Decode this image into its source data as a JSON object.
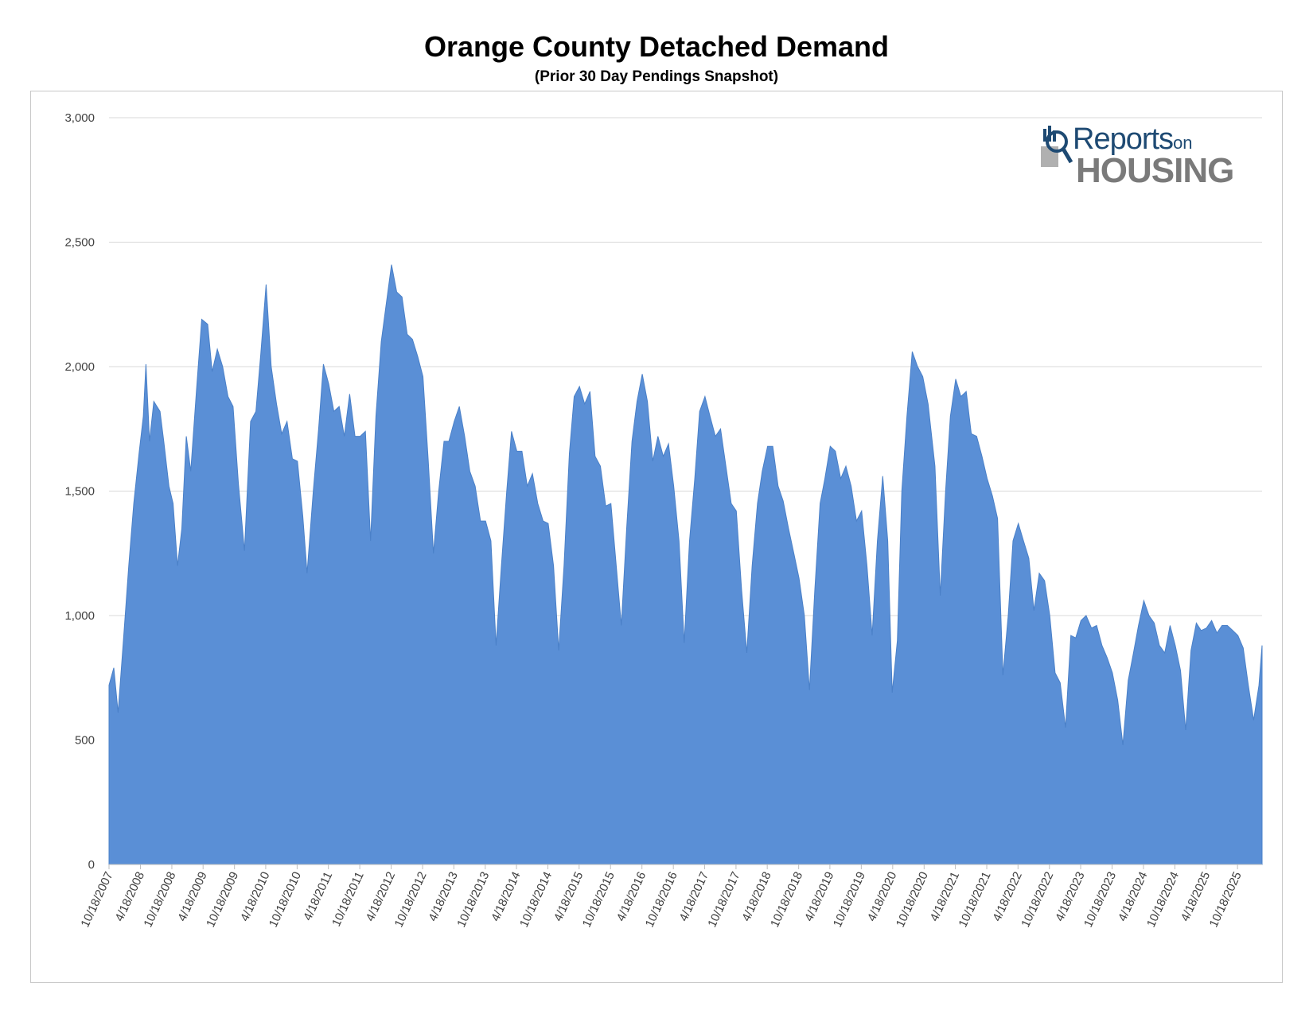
{
  "title": "Orange County Detached Demand",
  "subtitle": "(Prior 30 Day Pendings Snapshot)",
  "logo": {
    "line1": "Reports",
    "line1_suffix": "on",
    "line2": "HOUSING"
  },
  "colors": {
    "fill": "#5a8fd6",
    "grid": "#d9d9d9",
    "text": "#404040"
  },
  "chart_data": {
    "type": "area",
    "title": "Orange County Detached Demand",
    "subtitle": "(Prior 30 Day Pendings Snapshot)",
    "xlabel": "",
    "ylabel": "",
    "ylim": [
      0,
      3000
    ],
    "y_ticks": [
      0,
      500,
      1000,
      1500,
      2000,
      2500,
      3000
    ],
    "y_tick_labels": [
      "0",
      "500",
      "1,000",
      "1,500",
      "2,000",
      "2,500",
      "3,000"
    ],
    "x_tick_labels": [
      "10/18/2007",
      "4/18/2008",
      "10/18/2008",
      "4/18/2009",
      "10/18/2009",
      "4/18/2010",
      "10/18/2010",
      "4/18/2011",
      "10/18/2011",
      "4/18/2012",
      "10/18/2012",
      "4/18/2013",
      "10/18/2013",
      "4/18/2014",
      "10/18/2014",
      "4/18/2015",
      "10/18/2015",
      "4/18/2016",
      "10/18/2016",
      "4/18/2017",
      "10/18/2017",
      "4/18/2018",
      "10/18/2018",
      "4/18/2019",
      "10/18/2019",
      "4/18/2020",
      "10/18/2020",
      "4/18/2021",
      "10/18/2021",
      "4/18/2022",
      "10/18/2022",
      "4/18/2023",
      "10/18/2023",
      "4/18/2024",
      "10/18/2024",
      "4/18/2025",
      "10/18/2025"
    ],
    "grid": true,
    "legend": "none",
    "series": [
      {
        "points": [
          [
            "2007-10-18",
            720
          ],
          [
            "2007-11-15",
            790
          ],
          [
            "2007-12-10",
            610
          ],
          [
            "2008-01-10",
            900
          ],
          [
            "2008-02-10",
            1200
          ],
          [
            "2008-03-10",
            1450
          ],
          [
            "2008-04-10",
            1650
          ],
          [
            "2008-05-05",
            1800
          ],
          [
            "2008-05-20",
            2010
          ],
          [
            "2008-06-10",
            1700
          ],
          [
            "2008-07-05",
            1860
          ],
          [
            "2008-08-10",
            1820
          ],
          [
            "2008-09-01",
            1700
          ],
          [
            "2008-10-01",
            1520
          ],
          [
            "2008-10-25",
            1450
          ],
          [
            "2008-11-20",
            1200
          ],
          [
            "2008-12-15",
            1350
          ],
          [
            "2009-01-10",
            1720
          ],
          [
            "2009-02-05",
            1580
          ],
          [
            "2009-03-10",
            1900
          ],
          [
            "2009-04-10",
            2190
          ],
          [
            "2009-05-15",
            2170
          ],
          [
            "2009-06-10",
            1980
          ],
          [
            "2009-07-10",
            2070
          ],
          [
            "2009-08-10",
            2000
          ],
          [
            "2009-09-10",
            1880
          ],
          [
            "2009-10-10",
            1840
          ],
          [
            "2009-11-10",
            1530
          ],
          [
            "2009-12-15",
            1260
          ],
          [
            "2010-01-20",
            1780
          ],
          [
            "2010-02-20",
            1820
          ],
          [
            "2010-03-20",
            2050
          ],
          [
            "2010-04-20",
            2330
          ],
          [
            "2010-05-20",
            2000
          ],
          [
            "2010-06-20",
            1850
          ],
          [
            "2010-07-20",
            1730
          ],
          [
            "2010-08-20",
            1780
          ],
          [
            "2010-09-20",
            1630
          ],
          [
            "2010-10-20",
            1620
          ],
          [
            "2010-11-20",
            1400
          ],
          [
            "2010-12-15",
            1170
          ],
          [
            "2011-01-20",
            1500
          ],
          [
            "2011-02-20",
            1750
          ],
          [
            "2011-03-20",
            2010
          ],
          [
            "2011-04-20",
            1930
          ],
          [
            "2011-05-20",
            1820
          ],
          [
            "2011-06-20",
            1840
          ],
          [
            "2011-07-20",
            1720
          ],
          [
            "2011-08-20",
            1890
          ],
          [
            "2011-09-20",
            1720
          ],
          [
            "2011-10-20",
            1720
          ],
          [
            "2011-11-20",
            1740
          ],
          [
            "2011-12-20",
            1300
          ],
          [
            "2012-01-20",
            1800
          ],
          [
            "2012-02-20",
            2100
          ],
          [
            "2012-03-20",
            2250
          ],
          [
            "2012-04-20",
            2410
          ],
          [
            "2012-05-20",
            2300
          ],
          [
            "2012-06-20",
            2280
          ],
          [
            "2012-07-20",
            2130
          ],
          [
            "2012-08-20",
            2110
          ],
          [
            "2012-09-20",
            2040
          ],
          [
            "2012-10-20",
            1960
          ],
          [
            "2012-11-20",
            1620
          ],
          [
            "2012-12-20",
            1250
          ],
          [
            "2013-01-20",
            1500
          ],
          [
            "2013-02-20",
            1700
          ],
          [
            "2013-03-20",
            1700
          ],
          [
            "2013-04-20",
            1780
          ],
          [
            "2013-05-20",
            1840
          ],
          [
            "2013-06-20",
            1720
          ],
          [
            "2013-07-20",
            1580
          ],
          [
            "2013-08-20",
            1520
          ],
          [
            "2013-09-20",
            1380
          ],
          [
            "2013-10-20",
            1380
          ],
          [
            "2013-11-20",
            1300
          ],
          [
            "2013-12-20",
            880
          ],
          [
            "2014-01-20",
            1200
          ],
          [
            "2014-02-20",
            1500
          ],
          [
            "2014-03-20",
            1740
          ],
          [
            "2014-04-20",
            1660
          ],
          [
            "2014-05-20",
            1660
          ],
          [
            "2014-06-20",
            1520
          ],
          [
            "2014-07-20",
            1570
          ],
          [
            "2014-08-20",
            1450
          ],
          [
            "2014-09-20",
            1380
          ],
          [
            "2014-10-20",
            1370
          ],
          [
            "2014-11-20",
            1200
          ],
          [
            "2014-12-20",
            860
          ],
          [
            "2015-01-20",
            1200
          ],
          [
            "2015-02-20",
            1650
          ],
          [
            "2015-03-20",
            1880
          ],
          [
            "2015-04-20",
            1920
          ],
          [
            "2015-05-20",
            1850
          ],
          [
            "2015-06-20",
            1900
          ],
          [
            "2015-07-20",
            1640
          ],
          [
            "2015-08-20",
            1600
          ],
          [
            "2015-09-20",
            1440
          ],
          [
            "2015-10-20",
            1450
          ],
          [
            "2015-11-20",
            1200
          ],
          [
            "2015-12-20",
            960
          ],
          [
            "2016-01-20",
            1350
          ],
          [
            "2016-02-20",
            1700
          ],
          [
            "2016-03-20",
            1860
          ],
          [
            "2016-04-20",
            1970
          ],
          [
            "2016-05-20",
            1860
          ],
          [
            "2016-06-20",
            1620
          ],
          [
            "2016-07-20",
            1720
          ],
          [
            "2016-08-20",
            1640
          ],
          [
            "2016-09-20",
            1690
          ],
          [
            "2016-10-20",
            1520
          ],
          [
            "2016-11-20",
            1300
          ],
          [
            "2016-12-20",
            890
          ],
          [
            "2017-01-20",
            1300
          ],
          [
            "2017-02-20",
            1550
          ],
          [
            "2017-03-20",
            1820
          ],
          [
            "2017-04-20",
            1880
          ],
          [
            "2017-05-20",
            1800
          ],
          [
            "2017-06-20",
            1720
          ],
          [
            "2017-07-20",
            1750
          ],
          [
            "2017-08-20",
            1600
          ],
          [
            "2017-09-20",
            1450
          ],
          [
            "2017-10-20",
            1420
          ],
          [
            "2017-11-20",
            1100
          ],
          [
            "2017-12-20",
            850
          ],
          [
            "2018-01-20",
            1200
          ],
          [
            "2018-02-20",
            1450
          ],
          [
            "2018-03-20",
            1580
          ],
          [
            "2018-04-20",
            1680
          ],
          [
            "2018-05-20",
            1680
          ],
          [
            "2018-06-20",
            1520
          ],
          [
            "2018-07-20",
            1460
          ],
          [
            "2018-08-20",
            1350
          ],
          [
            "2018-09-20",
            1250
          ],
          [
            "2018-10-20",
            1150
          ],
          [
            "2018-11-20",
            1000
          ],
          [
            "2018-12-20",
            700
          ],
          [
            "2019-01-20",
            1100
          ],
          [
            "2019-02-20",
            1450
          ],
          [
            "2019-03-20",
            1550
          ],
          [
            "2019-04-20",
            1680
          ],
          [
            "2019-05-20",
            1660
          ],
          [
            "2019-06-20",
            1550
          ],
          [
            "2019-07-20",
            1600
          ],
          [
            "2019-08-20",
            1520
          ],
          [
            "2019-09-20",
            1380
          ],
          [
            "2019-10-20",
            1420
          ],
          [
            "2019-11-20",
            1200
          ],
          [
            "2019-12-20",
            920
          ],
          [
            "2020-01-20",
            1300
          ],
          [
            "2020-02-20",
            1560
          ],
          [
            "2020-03-20",
            1300
          ],
          [
            "2020-04-15",
            690
          ],
          [
            "2020-05-15",
            900
          ],
          [
            "2020-06-10",
            1500
          ],
          [
            "2020-07-10",
            1800
          ],
          [
            "2020-08-10",
            2060
          ],
          [
            "2020-09-10",
            2000
          ],
          [
            "2020-10-10",
            1960
          ],
          [
            "2020-11-10",
            1850
          ],
          [
            "2020-12-20",
            1600
          ],
          [
            "2021-01-20",
            1080
          ],
          [
            "2021-02-20",
            1500
          ],
          [
            "2021-03-20",
            1800
          ],
          [
            "2021-04-20",
            1950
          ],
          [
            "2021-05-20",
            1880
          ],
          [
            "2021-06-20",
            1900
          ],
          [
            "2021-07-20",
            1730
          ],
          [
            "2021-08-20",
            1720
          ],
          [
            "2021-09-20",
            1640
          ],
          [
            "2021-10-20",
            1550
          ],
          [
            "2021-11-20",
            1480
          ],
          [
            "2021-12-20",
            1390
          ],
          [
            "2022-01-20",
            760
          ],
          [
            "2022-02-20",
            1000
          ],
          [
            "2022-03-20",
            1300
          ],
          [
            "2022-04-20",
            1370
          ],
          [
            "2022-05-20",
            1300
          ],
          [
            "2022-06-20",
            1230
          ],
          [
            "2022-07-20",
            1020
          ],
          [
            "2022-08-20",
            1170
          ],
          [
            "2022-09-20",
            1140
          ],
          [
            "2022-10-20",
            1000
          ],
          [
            "2022-11-20",
            770
          ],
          [
            "2022-12-20",
            730
          ],
          [
            "2023-01-20",
            550
          ],
          [
            "2023-02-20",
            920
          ],
          [
            "2023-03-20",
            910
          ],
          [
            "2023-04-20",
            980
          ],
          [
            "2023-05-20",
            1000
          ],
          [
            "2023-06-20",
            950
          ],
          [
            "2023-07-20",
            960
          ],
          [
            "2023-08-20",
            880
          ],
          [
            "2023-09-20",
            830
          ],
          [
            "2023-10-20",
            770
          ],
          [
            "2023-11-20",
            660
          ],
          [
            "2023-12-20",
            480
          ],
          [
            "2024-01-20",
            740
          ],
          [
            "2024-02-20",
            850
          ],
          [
            "2024-03-20",
            960
          ],
          [
            "2024-04-20",
            1060
          ],
          [
            "2024-05-20",
            1000
          ],
          [
            "2024-06-20",
            970
          ],
          [
            "2024-07-20",
            880
          ],
          [
            "2024-08-20",
            850
          ],
          [
            "2024-09-20",
            960
          ],
          [
            "2024-10-20",
            880
          ],
          [
            "2024-11-20",
            780
          ],
          [
            "2024-12-20",
            540
          ],
          [
            "2025-01-20",
            860
          ],
          [
            "2025-02-20",
            970
          ],
          [
            "2025-03-20",
            940
          ],
          [
            "2025-04-20",
            950
          ],
          [
            "2025-05-20",
            980
          ],
          [
            "2025-06-20",
            930
          ],
          [
            "2025-07-20",
            960
          ],
          [
            "2025-08-20",
            960
          ],
          [
            "2025-09-20",
            940
          ],
          [
            "2025-10-20",
            920
          ],
          [
            "2025-11-20",
            870
          ],
          [
            "2025-12-20",
            720
          ],
          [
            "2026-01-20",
            580
          ],
          [
            "2026-02-20",
            720
          ],
          [
            "2026-03-10",
            880
          ]
        ]
      }
    ]
  }
}
